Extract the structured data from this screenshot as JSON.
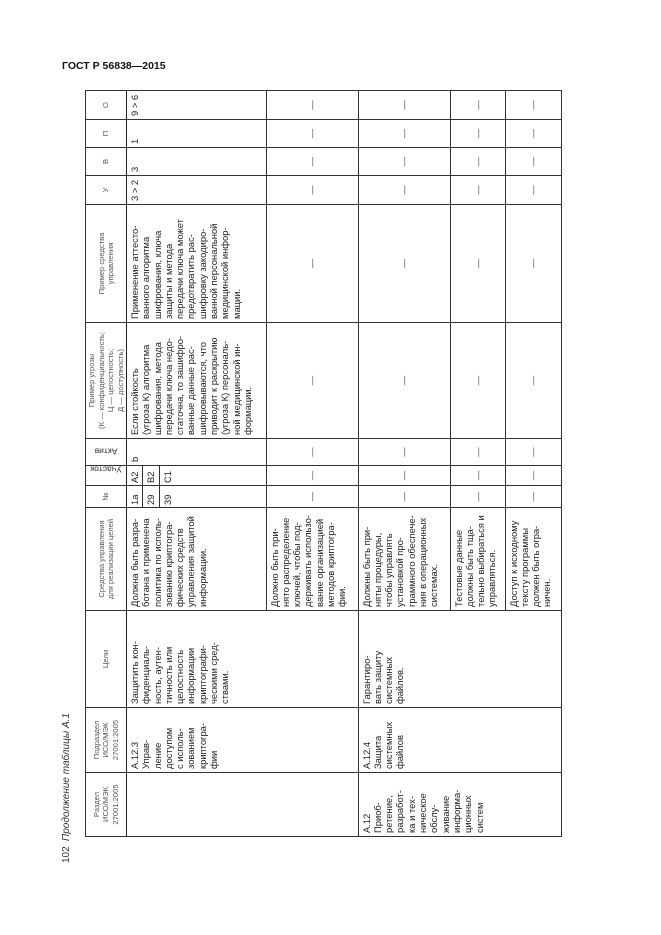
{
  "document": {
    "standard": "ГОСТ Р 56838—2015",
    "page_number": "102",
    "caption": "Продолжение таблицы А.1"
  },
  "table": {
    "headers": [
      "Раздел\nИСО/МЭК\n27001:2005",
      "Подраздел\nИСО/МЭК\n27001:2005",
      "Цели",
      "Средства управления\nдля реализации целей",
      "№",
      "Участок",
      "Актив",
      "Пример угрозы\n(К — конфиденциальность;\nЦ — целостность;\nД — доступность)",
      "Пример средства\nуправления",
      "У",
      "В",
      "П",
      "О"
    ],
    "dash": "—",
    "rows": [
      {
        "section": "",
        "subsection": "А.12.3\nУправ-\nление\nдоступом\nс исполь-\nзованием\nкриптогра-\nфии",
        "goal": "Защитить кон-\nфиденциаль-\nность, аутен-\nтичность или\nцелостность\nинформации\nкриптографи-\nческими сред-\nствами.",
        "control": "Должна быть разра-\nботана и применена\nполитика по исполь-\nзованию криптогра-\nфических средств\nуправления защитой\nинформации.",
        "numbers": [
          "1а",
          "29",
          "39"
        ],
        "areas": [
          "A2",
          "B2",
          "C1"
        ],
        "asset": "b",
        "threat": "Если стойкость\n(угроза К) алгоритма\nшифрования, метода\nпередачи ключа недо-\nстаточна, то зашифро-\nванные данные рас-\nшифровываются, что\nприводит к раскрытию\n(угроза К) персональ-\nной медицинской ин-\nформации.",
        "measure": "Применение аттесто-\nванного алгоритма\nшифрования, ключа\nзащиты и метода\nпередачи ключа может\nпредотвратить рас-\nшифровку закодиро-\nванной персональной\nмедицинской инфор-\nмации.",
        "u": "3 > 2",
        "v": "3",
        "p": "1",
        "o": "9 > 6"
      },
      {
        "control": "Должно быть при-\nнято распределение\nключей, чтобы под-\nдерживать использо-\nвание организацией\nметодов криптогра-\nфии."
      },
      {
        "section": "А.12\nПриоб-\nретение,\nразработ-\nка и тех-\nническое\nобслу-\nживание\nинформа-\nционных\nсистем",
        "subsection": "А.12.4\nЗащита\nсистемных\nфайлов",
        "goal": "Гарантиро-\nвать защиту\nсистемных\nфайлов.",
        "control": "Должны быть при-\nняты процедуры,\nчтобы управлять\nустановкой про-\nграммного обеспече-\nния в операционных\nсистемах."
      },
      {
        "control": "Тестовые данные\nдолжны быть тща-\nтельно выбираться и\nуправляться."
      },
      {
        "control": "Доступ к исходному\nтексту программы\nдолжен быть огра-\nничен."
      }
    ]
  }
}
